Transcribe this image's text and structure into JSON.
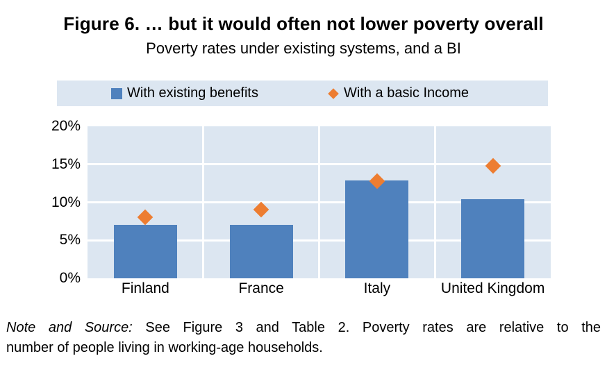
{
  "figure": {
    "title": "Figure 6. … but it would often not lower poverty overall",
    "subtitle": "Poverty rates under existing systems, and a BI"
  },
  "legend": {
    "background_color": "#dce6f1",
    "items": [
      {
        "label": "With existing benefits",
        "marker": "blue-square",
        "color": "#4f81bd"
      },
      {
        "label": "With a basic Income",
        "marker": "orange-diamond",
        "color": "#ed7d31"
      }
    ]
  },
  "chart_data": {
    "type": "bar",
    "title": "Figure 6. … but it would often not lower poverty overall",
    "subtitle": "Poverty rates under existing systems, and a BI",
    "categories": [
      "Finland",
      "France",
      "Italy",
      "United Kingdom"
    ],
    "series": [
      {
        "name": "With existing benefits",
        "type": "bar",
        "color": "#4f81bd",
        "values": [
          7.0,
          7.0,
          12.9,
          10.4
        ]
      },
      {
        "name": "With a basic Income",
        "type": "point-diamond",
        "color": "#ed7d31",
        "values": [
          8.0,
          9.0,
          12.8,
          14.8
        ]
      }
    ],
    "xlabel": "",
    "ylabel": "",
    "ylim": [
      0,
      20
    ],
    "yticks": [
      {
        "value": 0,
        "label": "0%"
      },
      {
        "value": 5,
        "label": "5%"
      },
      {
        "value": 10,
        "label": "10%"
      },
      {
        "value": 15,
        "label": "15%"
      },
      {
        "value": 20,
        "label": "20%"
      }
    ],
    "grid": "on",
    "panel_color": "#dce6f1",
    "gridline_color": "#ffffff",
    "legend_position": "top"
  },
  "note": {
    "prefix": "Note and Source:",
    "line1_rest": " See Figure 3 and Table 2. Poverty rates are relative to the",
    "line2": "number of people living in working-age households."
  }
}
